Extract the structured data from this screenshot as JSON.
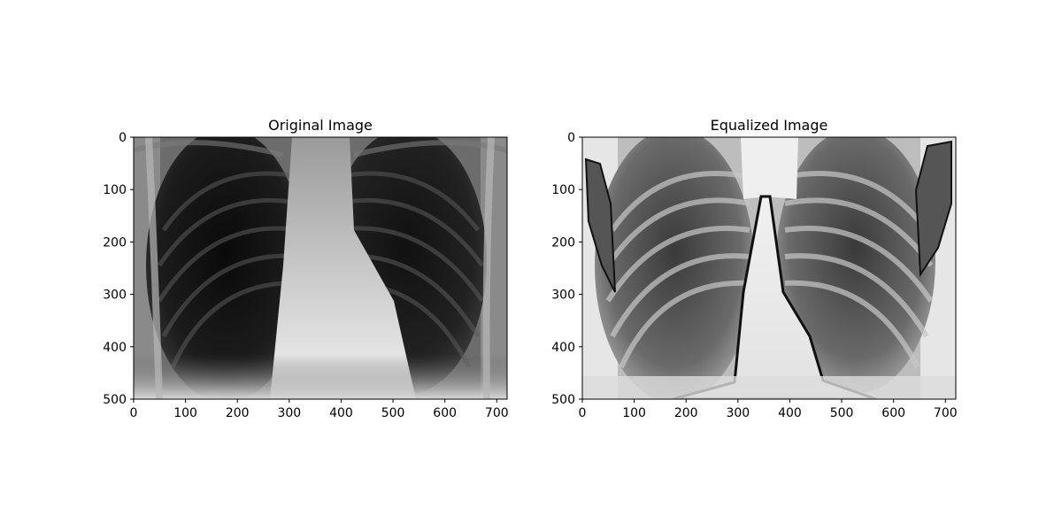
{
  "figure": {
    "background": "#ffffff",
    "axis_color": "#000000"
  },
  "chart_data": [
    {
      "type": "image",
      "title": "Original Image",
      "xlabel": "",
      "ylabel": "",
      "xlim": [
        0,
        720
      ],
      "ylim": [
        500,
        0
      ],
      "xticks": [
        0,
        100,
        200,
        300,
        400,
        500,
        600,
        700
      ],
      "yticks": [
        0,
        100,
        200,
        300,
        400,
        500
      ],
      "colormap": "gray"
    },
    {
      "type": "image",
      "title": "Equalized Image",
      "xlabel": "",
      "ylabel": "",
      "xlim": [
        0,
        720
      ],
      "ylim": [
        500,
        0
      ],
      "xticks": [
        0,
        100,
        200,
        300,
        400,
        500,
        600,
        700
      ],
      "yticks": [
        0,
        100,
        200,
        300,
        400,
        500
      ],
      "colormap": "gray"
    }
  ]
}
